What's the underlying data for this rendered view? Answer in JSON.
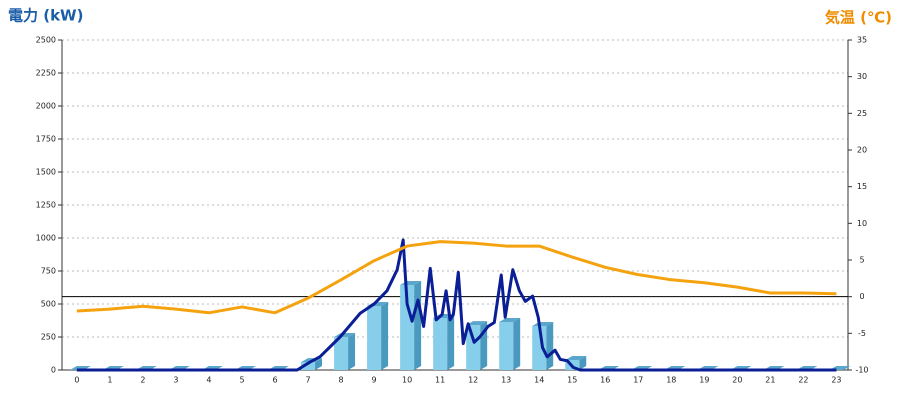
{
  "chart_data": {
    "type": "combo",
    "title_left": "電力 (kW)",
    "title_right": "気温 (℃)",
    "categories": [
      "0",
      "1",
      "2",
      "3",
      "4",
      "5",
      "6",
      "7",
      "8",
      "9",
      "10",
      "11",
      "12",
      "13",
      "14",
      "15",
      "16",
      "17",
      "18",
      "19",
      "20",
      "21",
      "22",
      "23"
    ],
    "xlim": [
      -0.45,
      23.35
    ],
    "ylim": [
      0,
      2500
    ],
    "yticks": [
      0,
      250,
      500,
      750,
      1000,
      1250,
      1500,
      1750,
      2000,
      2250,
      2500
    ],
    "y2lim": [
      -10,
      35
    ],
    "y2ticks": [
      -10,
      -5,
      0,
      5,
      10,
      15,
      20,
      25,
      30,
      35
    ],
    "y2_reference": 0,
    "grid": true,
    "series": [
      {
        "type": "bar",
        "color": "#87ceeb",
        "values": [
          0,
          0,
          0,
          0,
          0,
          0,
          0,
          60,
          250,
          485,
          644,
          394,
          340,
          364,
          333,
          76,
          0,
          0,
          0,
          0,
          0,
          0,
          0,
          0
        ]
      },
      {
        "type": "line",
        "color": "#0a1e96",
        "x": [
          0,
          6.67,
          7.06,
          7.36,
          7.97,
          8.58,
          9,
          9.39,
          9.7,
          9.88,
          10,
          10.15,
          10.33,
          10.5,
          10.7,
          10.88,
          11.06,
          11.18,
          11.3,
          11.4,
          11.55,
          11.7,
          11.85,
          12.03,
          12.2,
          12.45,
          12.64,
          12.85,
          12.97,
          13.2,
          13.4,
          13.58,
          13.8,
          13.97,
          14.1,
          14.24,
          14.48,
          14.64,
          14.85,
          15.03,
          15.24,
          23
        ],
        "values": [
          0,
          0,
          60,
          100,
          250,
          430,
          500,
          600,
          760,
          985,
          500,
          370,
          530,
          330,
          770,
          380,
          420,
          600,
          380,
          420,
          740,
          200,
          350,
          210,
          250,
          330,
          360,
          720,
          400,
          760,
          600,
          520,
          560,
          400,
          170,
          100,
          150,
          80,
          70,
          20,
          0,
          0
        ]
      },
      {
        "type": "line",
        "axis": "y2",
        "color": "#f5a20f",
        "values": [
          -1.95,
          -1.7,
          -1.3,
          -1.7,
          -2.2,
          -1.4,
          -2.2,
          -0.2,
          2.3,
          4.9,
          6.9,
          7.5,
          7.3,
          6.9,
          6.9,
          5.4,
          4.0,
          3.0,
          2.3,
          1.9,
          1.3,
          0.5,
          0.5,
          0.4
        ]
      }
    ]
  }
}
